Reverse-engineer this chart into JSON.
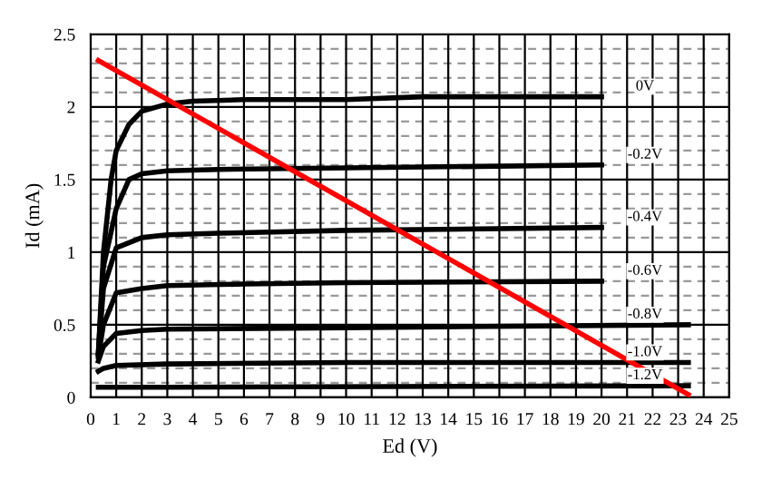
{
  "chart_data": {
    "type": "line",
    "xlabel": "Ed (V)",
    "ylabel": "Id (mA)",
    "xlim": [
      0,
      25
    ],
    "ylim": [
      0,
      2.5
    ],
    "xticks": [
      0,
      1,
      2,
      3,
      4,
      5,
      6,
      7,
      8,
      9,
      10,
      11,
      12,
      13,
      14,
      15,
      16,
      17,
      18,
      19,
      20,
      21,
      22,
      23,
      24,
      25
    ],
    "yticks": [
      0,
      0.5,
      1,
      1.5,
      2,
      2.5
    ],
    "grid": true,
    "marker": "none",
    "line_style": "solid",
    "series": [
      {
        "name": "0V",
        "color": "#000000",
        "x": [
          0.3,
          0.5,
          0.8,
          1,
          1.5,
          2,
          3,
          4,
          6,
          10,
          13,
          20
        ],
        "values": [
          0.3,
          1.0,
          1.5,
          1.7,
          1.88,
          1.97,
          2.02,
          2.04,
          2.05,
          2.05,
          2.07,
          2.07
        ]
      },
      {
        "name": "-0.2V",
        "color": "#000000",
        "x": [
          0.3,
          0.5,
          1,
          1.5,
          2,
          3,
          5,
          10,
          20
        ],
        "values": [
          0.3,
          0.9,
          1.3,
          1.5,
          1.54,
          1.56,
          1.57,
          1.58,
          1.6
        ]
      },
      {
        "name": "-0.4V",
        "color": "#000000",
        "x": [
          0.3,
          0.5,
          1,
          2,
          3,
          5,
          10,
          20
        ],
        "values": [
          0.3,
          0.75,
          1.03,
          1.1,
          1.12,
          1.13,
          1.15,
          1.17
        ]
      },
      {
        "name": "-0.6V",
        "color": "#000000",
        "x": [
          0.3,
          0.5,
          1,
          2,
          3,
          6,
          10,
          20
        ],
        "values": [
          0.28,
          0.5,
          0.72,
          0.75,
          0.77,
          0.78,
          0.79,
          0.8
        ]
      },
      {
        "name": "-0.8V",
        "color": "#000000",
        "x": [
          0.3,
          0.5,
          1,
          2,
          3,
          10,
          23.4
        ],
        "values": [
          0.25,
          0.35,
          0.44,
          0.46,
          0.47,
          0.48,
          0.5
        ]
      },
      {
        "name": "-1.0V",
        "color": "#000000",
        "x": [
          0.3,
          0.5,
          1,
          3,
          10,
          23.4
        ],
        "values": [
          0.18,
          0.2,
          0.22,
          0.23,
          0.24,
          0.24
        ]
      },
      {
        "name": "-1.2V",
        "color": "#000000",
        "x": [
          0.3,
          3,
          23.4
        ],
        "values": [
          0.07,
          0.07,
          0.08
        ]
      },
      {
        "color": "#ff0000",
        "x": [
          0.3,
          23.4
        ],
        "values": [
          2.32,
          0.02
        ]
      }
    ]
  }
}
